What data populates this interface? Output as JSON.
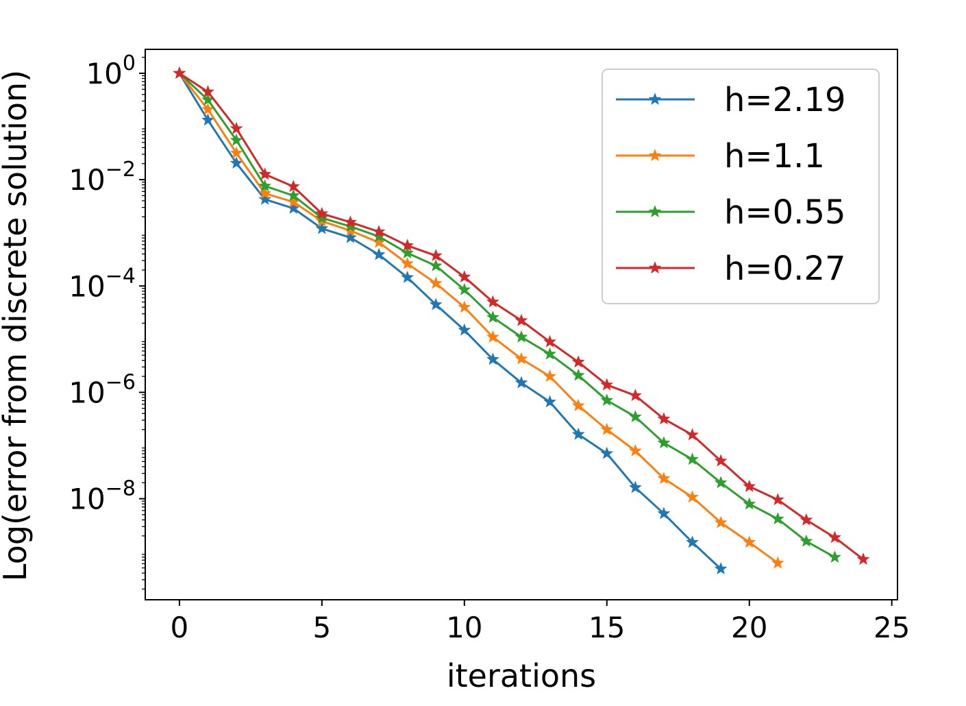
{
  "chart_data": {
    "type": "line",
    "title": "",
    "xlabel": "iterations",
    "ylabel": "Log(error from discrete solution)",
    "xlim": [
      -1.2,
      25.2
    ],
    "ylim_log10": [
      -9.9,
      0.45
    ],
    "yscale": "log",
    "grid": false,
    "legend_position": "top-right",
    "marker": "star",
    "x_ticks": [
      0,
      5,
      10,
      15,
      20,
      25
    ],
    "x_tick_labels": [
      "0",
      "5",
      "10",
      "15",
      "20",
      "25"
    ],
    "y_ticks_log10": [
      0,
      -2,
      -4,
      -6,
      -8
    ],
    "y_tick_base": "10",
    "y_tick_exponents": [
      "0",
      "−2",
      "−4",
      "−6",
      "−8"
    ],
    "series": [
      {
        "name": "h=2.19",
        "color": "#1f77b4",
        "x": [
          0,
          1,
          2,
          3,
          4,
          5,
          6,
          7,
          8,
          9,
          10,
          11,
          12,
          13,
          14,
          15,
          16,
          17,
          18,
          19
        ],
        "log10_y": [
          0,
          -0.88,
          -1.69,
          -2.37,
          -2.54,
          -2.92,
          -3.09,
          -3.41,
          -3.84,
          -4.35,
          -4.83,
          -5.38,
          -5.82,
          -6.18,
          -6.79,
          -7.15,
          -7.79,
          -8.28,
          -8.82,
          -9.32
        ]
      },
      {
        "name": "h=1.1",
        "color": "#ff7f0e",
        "x": [
          0,
          1,
          2,
          3,
          4,
          5,
          6,
          7,
          8,
          9,
          10,
          11,
          12,
          13,
          14,
          15,
          16,
          17,
          18,
          19,
          20,
          21
        ],
        "log10_y": [
          0,
          -0.68,
          -1.5,
          -2.26,
          -2.42,
          -2.78,
          -2.96,
          -3.18,
          -3.58,
          -3.95,
          -4.4,
          -4.96,
          -5.37,
          -5.7,
          -6.25,
          -6.7,
          -7.1,
          -7.62,
          -7.97,
          -8.45,
          -8.82,
          -9.21
        ]
      },
      {
        "name": "h=0.55",
        "color": "#2ca02c",
        "x": [
          0,
          1,
          2,
          3,
          4,
          5,
          6,
          7,
          8,
          9,
          10,
          11,
          12,
          13,
          14,
          15,
          16,
          17,
          18,
          19,
          20,
          21,
          22,
          23
        ],
        "log10_y": [
          0,
          -0.5,
          -1.26,
          -2.12,
          -2.3,
          -2.72,
          -2.88,
          -3.07,
          -3.38,
          -3.62,
          -4.07,
          -4.59,
          -4.96,
          -5.28,
          -5.68,
          -6.15,
          -6.46,
          -6.95,
          -7.26,
          -7.7,
          -8.1,
          -8.38,
          -8.8,
          -9.1
        ]
      },
      {
        "name": "h=0.27",
        "color": "#d62728",
        "x": [
          0,
          1,
          2,
          3,
          4,
          5,
          6,
          7,
          8,
          9,
          10,
          11,
          12,
          13,
          14,
          15,
          16,
          17,
          18,
          19,
          20,
          21,
          22,
          23,
          24
        ],
        "log10_y": [
          0,
          -0.35,
          -1.04,
          -1.9,
          -2.13,
          -2.64,
          -2.8,
          -2.98,
          -3.24,
          -3.43,
          -3.83,
          -4.3,
          -4.65,
          -5.05,
          -5.43,
          -5.86,
          -6.06,
          -6.5,
          -6.8,
          -7.29,
          -7.77,
          -8.02,
          -8.4,
          -8.73,
          -9.14
        ]
      }
    ]
  }
}
